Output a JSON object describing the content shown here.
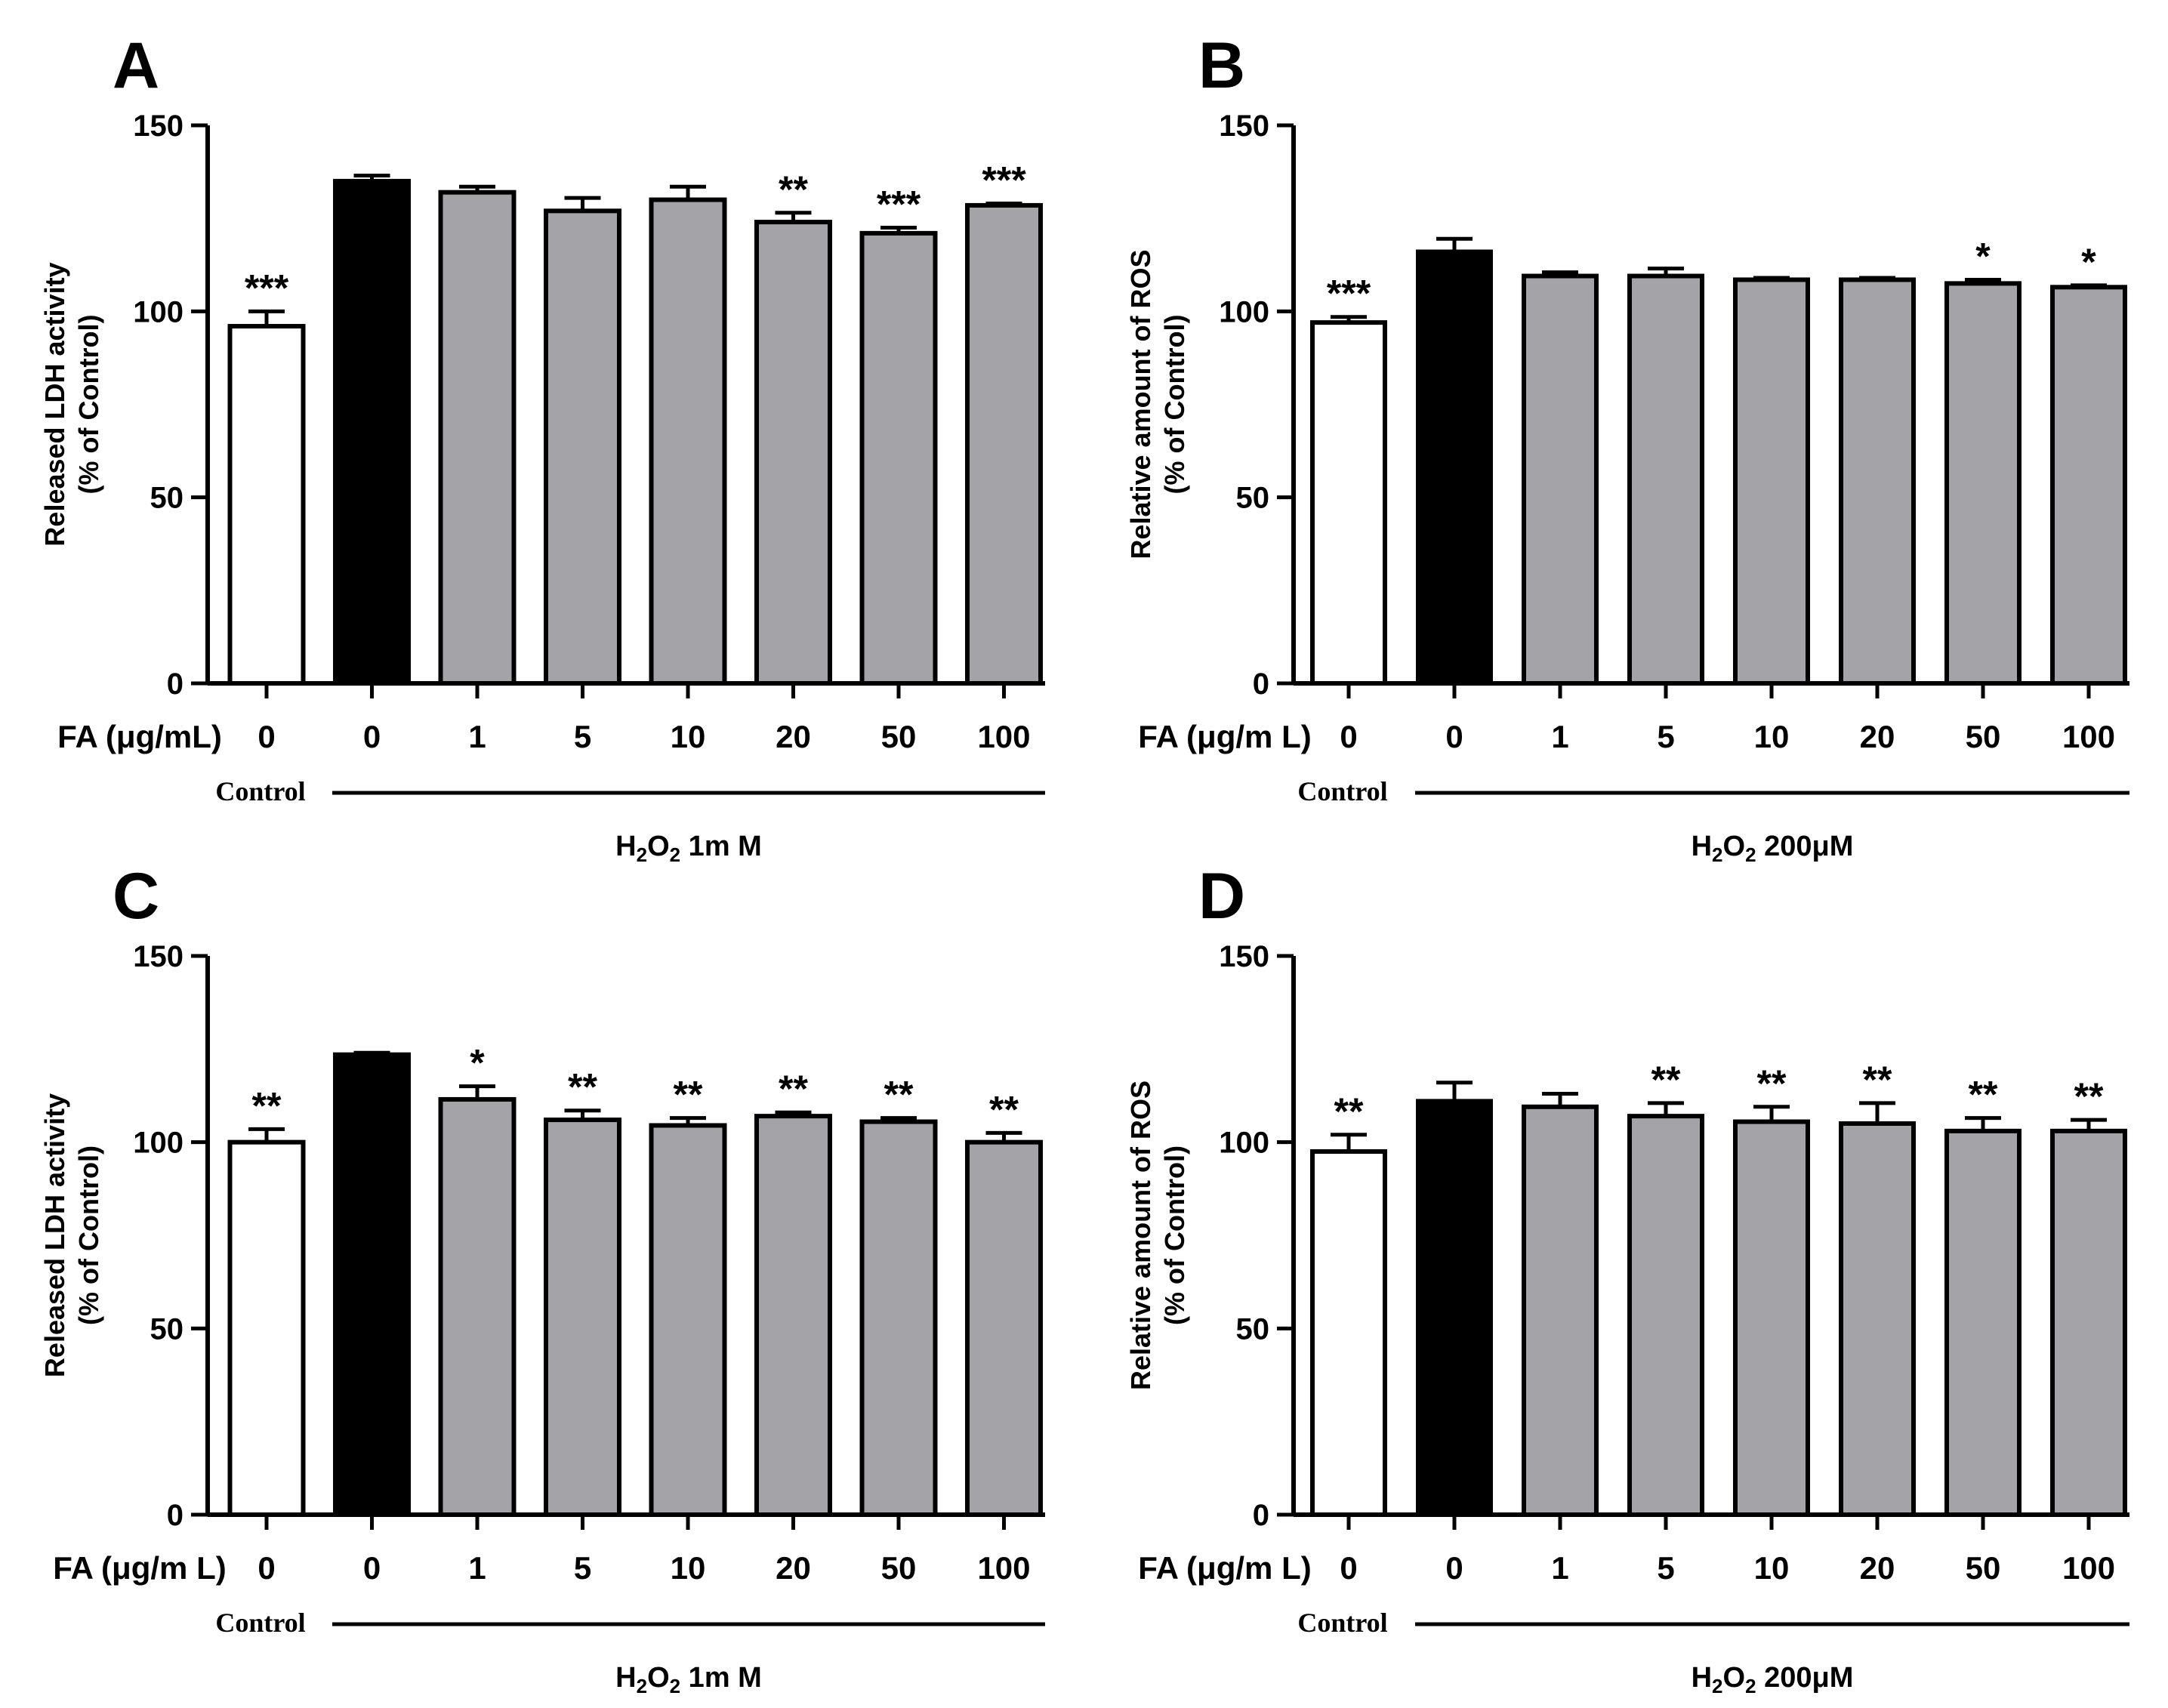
{
  "figure": {
    "colors": {
      "control": "#ffffff",
      "h2o2": "#000000",
      "fa": "#a3a3a8",
      "stroke": "#000000"
    }
  },
  "chart_data": [
    {
      "panel": "A",
      "type": "bar",
      "ylabel": [
        "Released LDH activity",
        "(% of Control)"
      ],
      "ylim": [
        0,
        150
      ],
      "yticks": [
        0,
        50,
        100,
        150
      ],
      "xlabel": "FA (μg/mL)",
      "categories": [
        "0",
        "0",
        "1",
        "5",
        "10",
        "20",
        "50",
        "100"
      ],
      "values": [
        96,
        135,
        132,
        127,
        130,
        124,
        121,
        128.5
      ],
      "errors": [
        4,
        1.5,
        1.5,
        3.5,
        3.5,
        2.5,
        1.5,
        0.5
      ],
      "bar_colors": [
        "control",
        "h2o2",
        "fa",
        "fa",
        "fa",
        "fa",
        "fa",
        "fa"
      ],
      "significance": [
        "***",
        "",
        "",
        "",
        "",
        "**",
        "***",
        "***"
      ],
      "control_label": "Control",
      "treatment": {
        "main": "H",
        "sub1": "2",
        "mid": "O",
        "sub2": "2",
        "dose": " 1m M"
      }
    },
    {
      "panel": "B",
      "type": "bar",
      "ylabel": [
        "Relative amount of ROS",
        "(% of Control)"
      ],
      "ylim": [
        0,
        150
      ],
      "yticks": [
        0,
        50,
        100,
        150
      ],
      "xlabel": "FA (μg/m L)",
      "categories": [
        "0",
        "0",
        "1",
        "5",
        "10",
        "20",
        "50",
        "100"
      ],
      "values": [
        97,
        116,
        109.5,
        109.5,
        108.5,
        108.5,
        107.5,
        106.5
      ],
      "errors": [
        1.5,
        3.5,
        1,
        2,
        0.5,
        0.5,
        1,
        0.5
      ],
      "bar_colors": [
        "control",
        "h2o2",
        "fa",
        "fa",
        "fa",
        "fa",
        "fa",
        "fa"
      ],
      "significance": [
        "***",
        "",
        "",
        "",
        "",
        "",
        "*",
        "*"
      ],
      "control_label": "Control",
      "treatment": {
        "main": "H",
        "sub1": "2",
        "mid": "O",
        "sub2": "2",
        "dose": " 200μM"
      }
    },
    {
      "panel": "C",
      "type": "bar",
      "ylabel": [
        "Released LDH activity",
        "(% of Control)"
      ],
      "ylim": [
        0,
        150
      ],
      "yticks": [
        0,
        50,
        100,
        150
      ],
      "xlabel": "FA (μg/m L)",
      "categories": [
        "0",
        "0",
        "1",
        "5",
        "10",
        "20",
        "50",
        "100"
      ],
      "values": [
        100,
        123.5,
        111.5,
        106,
        104.5,
        107,
        105.5,
        100
      ],
      "errors": [
        3.5,
        0.5,
        3.5,
        2.5,
        2,
        1,
        1,
        2.5
      ],
      "bar_colors": [
        "control",
        "h2o2",
        "fa",
        "fa",
        "fa",
        "fa",
        "fa",
        "fa"
      ],
      "significance": [
        "**",
        "",
        "*",
        "**",
        "**",
        "**",
        "**",
        "**"
      ],
      "control_label": "Control",
      "treatment": {
        "main": "H",
        "sub1": "2",
        "mid": "O",
        "sub2": "2",
        "dose": " 1m M"
      }
    },
    {
      "panel": "D",
      "type": "bar",
      "ylabel": [
        "Relative amount of ROS",
        "(% of Control)"
      ],
      "ylim": [
        0,
        150
      ],
      "yticks": [
        0,
        50,
        100,
        150
      ],
      "xlabel": "FA (μg/m L)",
      "categories": [
        "0",
        "0",
        "1",
        "5",
        "10",
        "20",
        "50",
        "100"
      ],
      "values": [
        97.5,
        111,
        109.5,
        107,
        105.5,
        105,
        103,
        103
      ],
      "errors": [
        4.5,
        5,
        3.5,
        3.5,
        4,
        5.5,
        3.5,
        3
      ],
      "bar_colors": [
        "control",
        "h2o2",
        "fa",
        "fa",
        "fa",
        "fa",
        "fa",
        "fa"
      ],
      "significance": [
        "**",
        "",
        "",
        "**",
        "**",
        "**",
        "**",
        "**"
      ],
      "control_label": "Control",
      "treatment": {
        "main": "H",
        "sub1": "2",
        "mid": "O",
        "sub2": "2",
        "dose": " 200μM"
      }
    }
  ]
}
